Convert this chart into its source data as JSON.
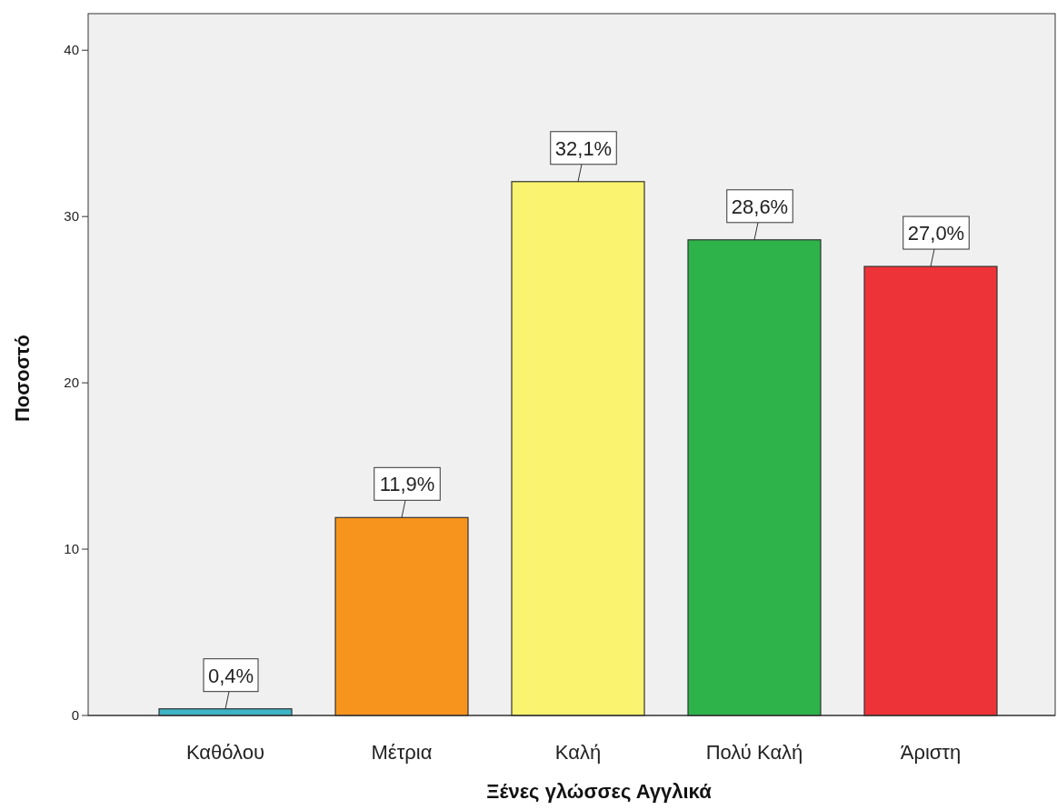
{
  "chart_data": {
    "type": "bar",
    "xlabel": "Ξένες γλώσσες Αγγλικά",
    "ylabel": "Ποσοστό",
    "categories": [
      "Καθόλου",
      "Μέτρια",
      "Καλή",
      "Πολύ Καλή",
      "Άριστη"
    ],
    "values": [
      0.4,
      11.9,
      32.1,
      28.6,
      27.0
    ],
    "colors": [
      "#3cb4c4",
      "#f7941d",
      "#f9f36f",
      "#2db34a",
      "#ee3338"
    ],
    "value_labels": [
      "0,4%",
      "11,9%",
      "32,1%",
      "28,6%",
      "27,0%"
    ],
    "ylim": [
      0,
      42.2
    ],
    "yticks": [
      0,
      10,
      20,
      30,
      40
    ]
  }
}
